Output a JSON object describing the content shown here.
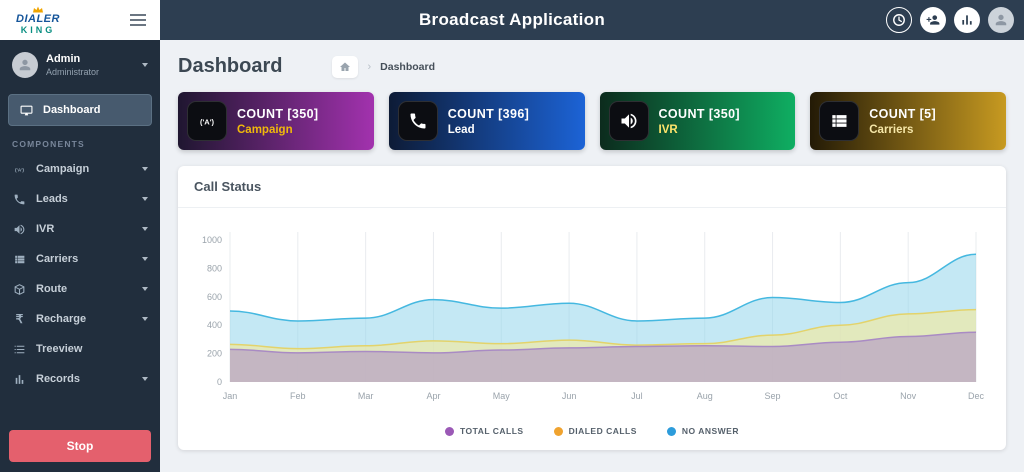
{
  "header": {
    "title": "Broadcast Application",
    "logo": {
      "line1": "DIALER",
      "line2": "KING",
      "icon": "crown-icon"
    },
    "action_icons": [
      "clock-icon",
      "user-add-icon",
      "bar-chart-icon",
      "avatar"
    ]
  },
  "sidebar": {
    "user": {
      "name": "Admin",
      "role": "Administrator"
    },
    "dashboard_item": {
      "label": "Dashboard",
      "icon": "monitor-icon"
    },
    "section_label": "COMPONENTS",
    "items": [
      {
        "label": "Campaign",
        "icon": "broadcast-icon",
        "caret": true
      },
      {
        "label": "Leads",
        "icon": "phone-icon",
        "caret": true
      },
      {
        "label": "IVR",
        "icon": "speaker-icon",
        "caret": true
      },
      {
        "label": "Carriers",
        "icon": "list-icon",
        "caret": true
      },
      {
        "label": "Route",
        "icon": "box-icon",
        "caret": true
      },
      {
        "label": "Recharge",
        "icon": "rupee-icon",
        "caret": true
      },
      {
        "label": "Treeview",
        "icon": "treeview-icon",
        "caret": false
      },
      {
        "label": "Records",
        "icon": "records-icon",
        "caret": true
      }
    ],
    "stop_button": "Stop"
  },
  "main": {
    "page_title": "Dashboard",
    "breadcrumb": {
      "home_icon": "home-icon",
      "current": "Dashboard"
    },
    "cards": [
      {
        "count": "COUNT [350]",
        "label": "Campaign",
        "icon": "broadcast-icon",
        "gradient_from": "#1f1630",
        "gradient_to": "#a232ae",
        "label_color": "#f0b90b"
      },
      {
        "count": "COUNT [396]",
        "label": "Lead",
        "icon": "phone-icon",
        "gradient_from": "#0d1b36",
        "gradient_to": "#1c63d6",
        "label_color": "#ffffff"
      },
      {
        "count": "COUNT [350]",
        "label": "IVR",
        "icon": "speaker-icon",
        "gradient_from": "#0c2b1d",
        "gradient_to": "#0fae62",
        "label_color": "#ffe46b"
      },
      {
        "count": "COUNT [5]",
        "label": "Carriers",
        "icon": "list-icon",
        "gradient_from": "#231a06",
        "gradient_to": "#c79a21",
        "label_color": "#f6e7a8"
      }
    ],
    "panel_title": "Call Status"
  },
  "chart_data": {
    "type": "area",
    "title": "Call Status",
    "x": [
      "Jan",
      "Feb",
      "Mar",
      "Apr",
      "May",
      "Jun",
      "Jul",
      "Aug",
      "Sep",
      "Oct",
      "Nov",
      "Dec"
    ],
    "ylim": [
      0,
      1000
    ],
    "yticks": [
      0,
      200,
      400,
      600,
      800,
      1000
    ],
    "grid": "vertical",
    "legend_position": "bottom",
    "series": [
      {
        "name": "TOTAL CALLS",
        "dot_color": "#9b59b6",
        "line_color": "#a98bc4",
        "fill_color": "rgba(171,140,199,0.55)",
        "values": [
          230,
          205,
          215,
          205,
          225,
          240,
          250,
          255,
          250,
          280,
          320,
          350
        ]
      },
      {
        "name": "DIALED CALLS",
        "dot_color": "#f0a32f",
        "line_color": "#e3d36b",
        "fill_color": "rgba(243,233,160,0.65)",
        "values": [
          265,
          235,
          255,
          290,
          270,
          295,
          260,
          270,
          330,
          400,
          480,
          510
        ]
      },
      {
        "name": "NO ANSWER",
        "dot_color": "#2d9cdb",
        "line_color": "#45b8e0",
        "fill_color": "rgba(148,214,235,0.55)",
        "values": [
          500,
          430,
          450,
          580,
          520,
          555,
          430,
          450,
          595,
          560,
          700,
          900
        ]
      }
    ]
  }
}
